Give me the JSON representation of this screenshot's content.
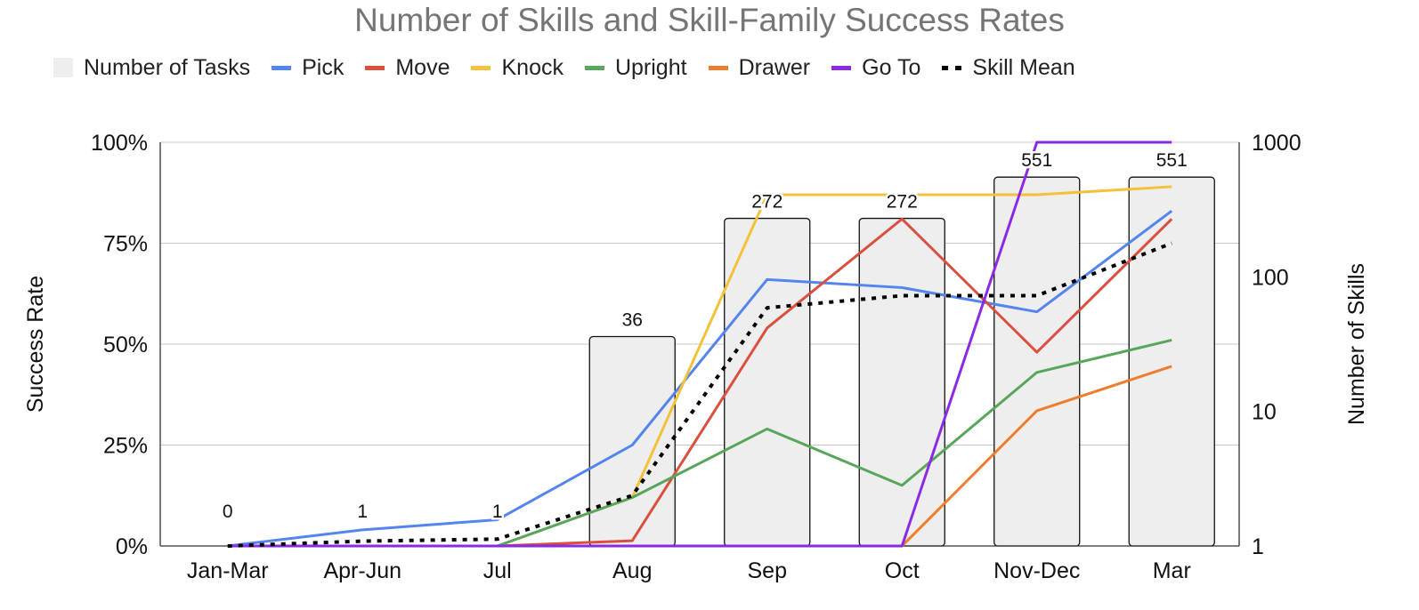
{
  "chart_data": {
    "type": "bar",
    "title": "Number of Skills and Skill-Family Success Rates",
    "categories": [
      "Jan-Mar",
      "Apr-Jun",
      "Jul",
      "Aug",
      "Sep",
      "Oct",
      "Nov-Dec",
      "Mar"
    ],
    "y_left": {
      "label": "Success Rate",
      "range": [
        0,
        100
      ],
      "ticks": [
        "0%",
        "25%",
        "50%",
        "75%",
        "100%"
      ],
      "tick_values": [
        0,
        25,
        50,
        75,
        100
      ]
    },
    "y_right": {
      "label": "Number of Skills",
      "scale": "log",
      "range": [
        1,
        1000
      ],
      "ticks": [
        "1",
        "10",
        "100",
        "1000"
      ],
      "tick_values": [
        1,
        10,
        100,
        1000
      ]
    },
    "bars": {
      "name": "Number of Tasks",
      "axis": "right",
      "values": [
        0,
        1,
        1,
        36,
        272,
        272,
        551,
        551
      ],
      "labels": [
        "0",
        "1",
        "1",
        "36",
        "272",
        "272",
        "551",
        "551"
      ],
      "color": "#eeeeee"
    },
    "series": [
      {
        "name": "Pick",
        "axis": "left",
        "color": "#5484ed",
        "dash": "solid",
        "values": [
          0,
          4,
          6.5,
          25,
          66,
          64,
          58,
          83
        ]
      },
      {
        "name": "Move",
        "axis": "left",
        "color": "#db4f3f",
        "dash": "solid",
        "values": [
          0,
          0,
          0,
          1.3,
          54,
          81,
          48,
          81
        ]
      },
      {
        "name": "Knock",
        "axis": "left",
        "color": "#f3c13a",
        "dash": "solid",
        "values": [
          0,
          0,
          0,
          12,
          87,
          87,
          87,
          89
        ]
      },
      {
        "name": "Upright",
        "axis": "left",
        "color": "#58a65c",
        "dash": "solid",
        "values": [
          0,
          0,
          0,
          12,
          29,
          15,
          43,
          51
        ]
      },
      {
        "name": "Drawer",
        "axis": "left",
        "color": "#ef7d2d",
        "dash": "solid",
        "values": [
          0,
          0,
          0,
          0,
          0,
          0,
          33.5,
          44.5
        ]
      },
      {
        "name": "Go To",
        "axis": "left",
        "color": "#8a2be2",
        "dash": "solid",
        "values": [
          0,
          0,
          0,
          0,
          0,
          0,
          100,
          100
        ]
      },
      {
        "name": "Skill Mean",
        "axis": "left",
        "color": "#000000",
        "dash": "dotted",
        "values": [
          0,
          1.2,
          1.7,
          12.5,
          59,
          62,
          62,
          75
        ]
      }
    ],
    "grid": true,
    "legend_position": "top"
  }
}
